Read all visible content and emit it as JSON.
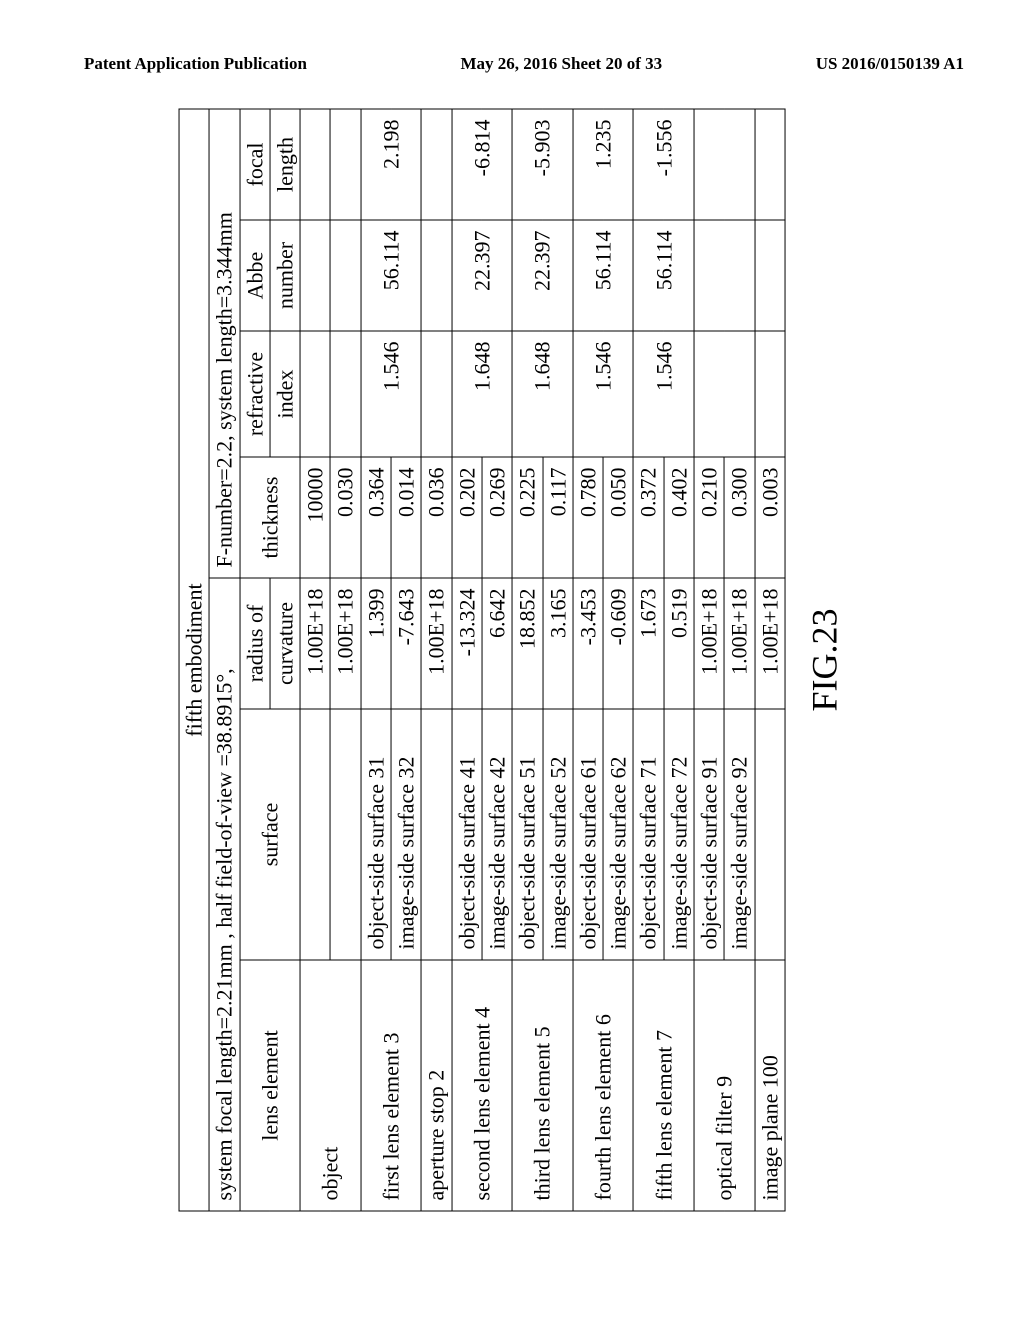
{
  "header": {
    "left": "Patent Application Publication",
    "center": "May 26, 2016  Sheet 20 of 33",
    "right": "US 2016/0150139 A1"
  },
  "figure_label": "FIG.23",
  "table": {
    "title": "fifth embodiment",
    "params_left": "system focal length=2.21mm ,   half field-of-view =38.8915°,",
    "params_right": "F-number=2.2, system length=3.344mm",
    "columns": {
      "lens": "lens element",
      "surface": "surface",
      "radius1": "radius of",
      "radius2": "curvature",
      "thickness": "thickness",
      "ri1": "refractive",
      "ri2": "index",
      "abbe1": "Abbe",
      "abbe2": "number",
      "fl1": "focal",
      "fl2": "length"
    },
    "rows": [
      {
        "lens": "object",
        "lens_rowspan": 2,
        "surface": "",
        "radius": "1.00E+18",
        "thickness": "10000",
        "ri": "",
        "abbe": "",
        "fl": ""
      },
      {
        "surface": "",
        "radius": "1.00E+18",
        "thickness": "0.030",
        "ri": "",
        "abbe": "",
        "fl": ""
      },
      {
        "lens": "first lens element 3",
        "lens_rowspan": 2,
        "surface": "object-side surface 31",
        "radius": "1.399",
        "thickness": "0.364",
        "ri": "1.546",
        "ri_rowspan": 2,
        "abbe": "56.114",
        "abbe_rowspan": 2,
        "fl": "2.198",
        "fl_rowspan": 2
      },
      {
        "surface": "image-side surface 32",
        "radius": "-7.643",
        "thickness": "0.014"
      },
      {
        "lens": "aperture stop 2",
        "surface": "",
        "radius": "1.00E+18",
        "thickness": "0.036",
        "ri": "",
        "abbe": "",
        "fl": ""
      },
      {
        "lens": "second lens element 4",
        "lens_rowspan": 2,
        "surface": "object-side surface 41",
        "radius": "-13.324",
        "thickness": "0.202",
        "ri": "1.648",
        "ri_rowspan": 2,
        "abbe": "22.397",
        "abbe_rowspan": 2,
        "fl": "-6.814",
        "fl_rowspan": 2
      },
      {
        "surface": "image-side surface 42",
        "radius": "6.642",
        "thickness": "0.269"
      },
      {
        "lens": "third lens element 5",
        "lens_rowspan": 2,
        "surface": "object-side surface 51",
        "radius": "18.852",
        "thickness": "0.225",
        "ri": "1.648",
        "ri_rowspan": 2,
        "abbe": "22.397",
        "abbe_rowspan": 2,
        "fl": "-5.903",
        "fl_rowspan": 2
      },
      {
        "surface": "image-side surface 52",
        "radius": "3.165",
        "thickness": "0.117"
      },
      {
        "lens": "fourth lens element 6",
        "lens_rowspan": 2,
        "surface": "object-side surface 61",
        "radius": "-3.453",
        "thickness": "0.780",
        "ri": "1.546",
        "ri_rowspan": 2,
        "abbe": "56.114",
        "abbe_rowspan": 2,
        "fl": "1.235",
        "fl_rowspan": 2
      },
      {
        "surface": "image-side surface 62",
        "radius": "-0.609",
        "thickness": "0.050"
      },
      {
        "lens": "fifth lens element 7",
        "lens_rowspan": 2,
        "surface": "object-side surface 71",
        "radius": "1.673",
        "thickness": "0.372",
        "ri": "1.546",
        "ri_rowspan": 2,
        "abbe": "56.114",
        "abbe_rowspan": 2,
        "fl": "-1.556",
        "fl_rowspan": 2
      },
      {
        "surface": "image-side surface 72",
        "radius": "0.519",
        "thickness": "0.402"
      },
      {
        "lens": "optical filter 9",
        "lens_rowspan": 2,
        "surface": "object-side surface 91",
        "radius": "1.00E+18",
        "thickness": "0.210",
        "ri": "",
        "ri_rowspan": 2,
        "abbe": "",
        "abbe_rowspan": 2,
        "fl": "",
        "fl_rowspan": 2
      },
      {
        "surface": "image-side surface 92",
        "radius": "1.00E+18",
        "thickness": "0.300"
      },
      {
        "lens": "image plane 100",
        "surface": "",
        "radius": "1.00E+18",
        "thickness": "0.003",
        "ri": "",
        "abbe": "",
        "fl": ""
      }
    ]
  }
}
